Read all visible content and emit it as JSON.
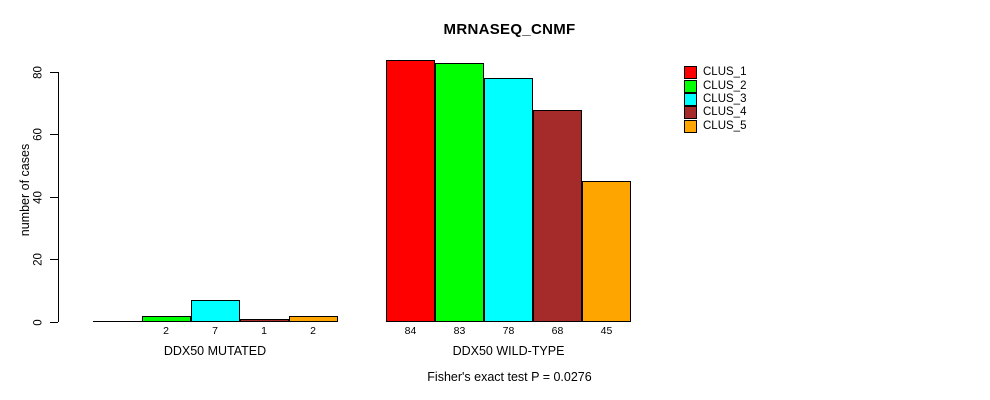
{
  "chart_data": {
    "type": "bar",
    "title": "MRNASEQ_CNMF",
    "ylabel": "number of cases",
    "xlabel": "",
    "ylim": [
      0,
      84
    ],
    "yticks": [
      0,
      20,
      40,
      60,
      80
    ],
    "grid": false,
    "legend_position": "right",
    "categories": [
      "DDX50 MUTATED",
      "DDX50 WILD-TYPE"
    ],
    "series": [
      {
        "name": "CLUS_1",
        "color": "#FF0000",
        "values": [
          0,
          84
        ],
        "labels": [
          "",
          "84"
        ]
      },
      {
        "name": "CLUS_2",
        "color": "#00FF00",
        "values": [
          2,
          83
        ],
        "labels": [
          "2",
          "83"
        ]
      },
      {
        "name": "CLUS_3",
        "color": "#00FFFF",
        "values": [
          7,
          78
        ],
        "labels": [
          "7",
          "78"
        ]
      },
      {
        "name": "CLUS_4",
        "color": "#A52A2A",
        "values": [
          1,
          68
        ],
        "labels": [
          "1",
          "68"
        ]
      },
      {
        "name": "CLUS_5",
        "color": "#FFA500",
        "values": [
          2,
          45
        ],
        "labels": [
          "2",
          "45"
        ]
      }
    ],
    "footnote": "Fisher's exact test P = 0.0276",
    "axis_color": "#000000",
    "text_color": "#000000",
    "background_color": "#FFFFFF"
  }
}
